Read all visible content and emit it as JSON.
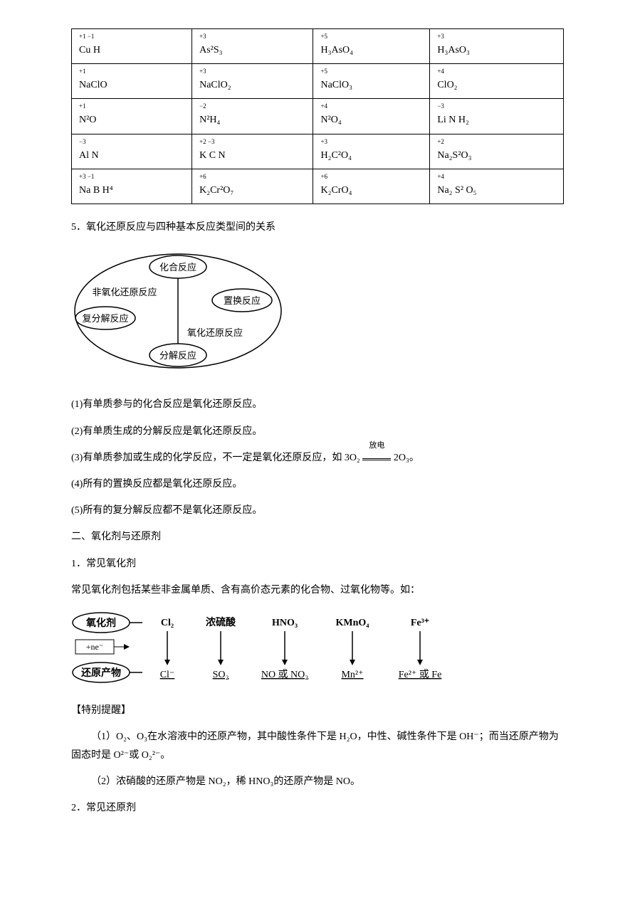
{
  "table": {
    "rows": [
      [
        {
          "ox": "+1 −1",
          "f": "Cu H"
        },
        {
          "ox": "+3",
          "f": "As²S₃"
        },
        {
          "ox": "+5",
          "f": "H₃AsO₄"
        },
        {
          "ox": "+3",
          "f": "H₃AsO₃"
        }
      ],
      [
        {
          "ox": "+1",
          "f": "NaClO"
        },
        {
          "ox": "+3",
          "f": "NaClO₂"
        },
        {
          "ox": "+5",
          "f": "NaClO₃"
        },
        {
          "ox": "+4",
          "f": "ClO₂"
        }
      ],
      [
        {
          "ox": "+1",
          "f": "N²O"
        },
        {
          "ox": "−2",
          "f": "N²H₄"
        },
        {
          "ox": "+4",
          "f": "N²O₄"
        },
        {
          "ox": "−3",
          "f": "Li N H₂"
        }
      ],
      [
        {
          "ox": "−3",
          "f": "Al N"
        },
        {
          "ox": "+2 −3",
          "f": "K C N"
        },
        {
          "ox": "+3",
          "f": "H₂C²O₄"
        },
        {
          "ox": "+2",
          "f": "Na₂S²O₃"
        }
      ],
      [
        {
          "ox": "+3 −1",
          "f": "Na B H⁴"
        },
        {
          "ox": "+6",
          "f": "K₂Cr²O₇"
        },
        {
          "ox": "+6",
          "f": "K₂CrO₄"
        },
        {
          "ox": "+4",
          "f": "Na₂ S² O₅"
        }
      ]
    ]
  },
  "section5_title": "5．氧化还原反应与四种基本反应类型间的关系",
  "venn": {
    "combination": "化合反应",
    "non_redox": "非氧化还原反应",
    "displacement": "置换反应",
    "metathesis": "复分解反应",
    "redox": "氧化还原反应",
    "decomposition": "分解反应"
  },
  "points": {
    "p1": "(1)有单质参与的化合反应是氧化还原反应。",
    "p2": "(2)有单质生成的分解反应是氧化还原反应。",
    "p3_prefix": "(3)有单质参加或生成的化学反应，不一定是氧化还原反应，如 3O₂ ",
    "p3_cond": "放电",
    "p3_suffix": " 2O₃。",
    "p4": "(4)所有的置换反应都是氧化还原反应。",
    "p5": "(5)所有的复分解反应都不是氧化还原反应。"
  },
  "section2_title": "二、氧化剂与还原剂",
  "sub1_title": "1．常见氧化剂",
  "sub1_desc": "常见氧化剂包括某些非金属单质、含有高价态元素的化合物、过氧化物等。如：",
  "oxidizer": {
    "top_label": "氧化剂",
    "arrow_label": "+ne⁻",
    "bottom_label": "还原产物",
    "items": [
      {
        "top": "Cl₂",
        "bottom": "Cl⁻"
      },
      {
        "top": "浓硫酸",
        "bottom": "SO₂"
      },
      {
        "top": "HNO₃",
        "bottom": "NO 或 NO₂"
      },
      {
        "top": "KMnO₄",
        "bottom": "Mn²⁺"
      },
      {
        "top": "Fe³⁺",
        "bottom": "Fe²⁺ 或 Fe"
      }
    ]
  },
  "special_title": "【特别提醒】",
  "special": {
    "s1": "（1）O₂、O₃在水溶液中的还原产物，其中酸性条件下是 H₂O，中性、碱性条件下是 OH⁻；而当还原产物为固态时是 O²⁻或 O₂²⁻。",
    "s2": "（2）浓硝酸的还原产物是 NO₂，稀 HNO₃的还原产物是 NO。"
  },
  "sub2_title": "2．常见还原剂",
  "colors": {
    "text": "#000000",
    "border": "#000000",
    "bg": "#ffffff"
  }
}
